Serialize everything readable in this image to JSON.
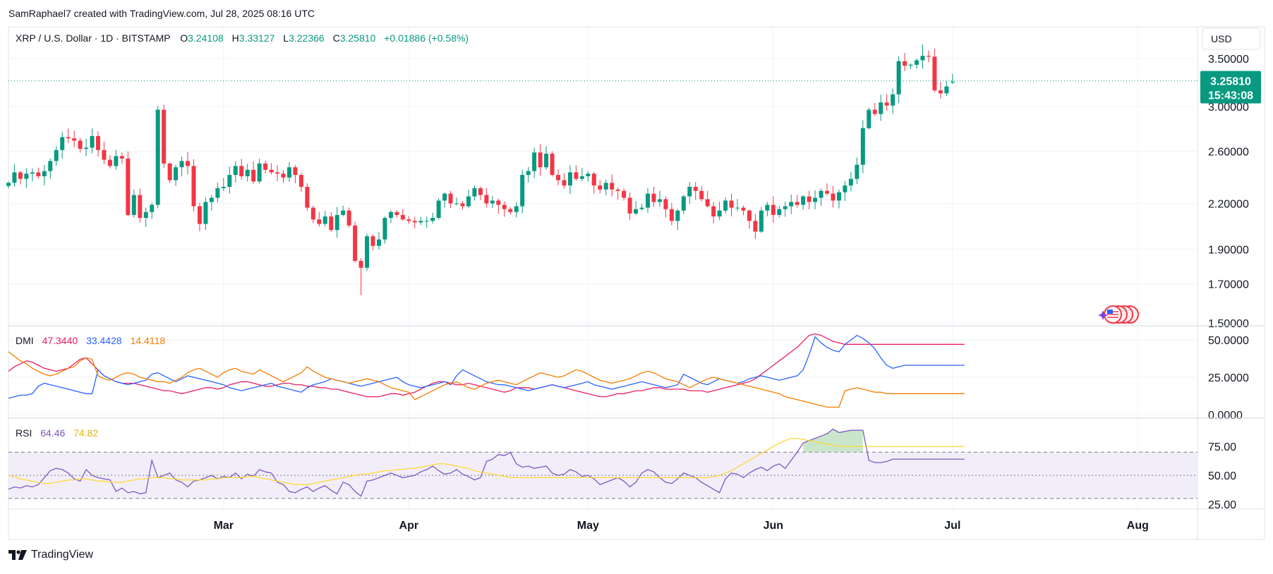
{
  "header": {
    "credit": "SamRaphael7 created with TradingView.com, Jul 28, 2025 08:16 UTC"
  },
  "legend": {
    "symbol": "XRP / U.S. Dollar · 1D · BITSTAMP",
    "o_label": "O",
    "o_value": "3.24108",
    "h_label": "H",
    "h_value": "3.33127",
    "l_label": "L",
    "l_value": "3.22366",
    "c_label": "C",
    "c_value": "3.25810",
    "change": "+0.01886 (+0.58%)"
  },
  "currency": "USD",
  "last_price": {
    "price": "3.25810",
    "countdown": "15:43:08"
  },
  "dmi_legend": {
    "label": "DMI",
    "adx": "47.3440",
    "plus_di": "33.4428",
    "minus_di": "14.4118"
  },
  "rsi_legend": {
    "label": "RSI",
    "rsi": "64.46",
    "ma": "74.82"
  },
  "branding": {
    "logo_text": "TradingView"
  },
  "colors": {
    "up": "#089981",
    "down": "#f23645",
    "adx": "#e91e63",
    "plus_di": "#2962ff",
    "minus_di": "#f57c00",
    "rsi": "#7e57c2",
    "rsi_ma": "#fdd835",
    "grid": "#f0f3fa"
  },
  "chart_data": [
    {
      "type": "candlestick",
      "title": "XRP / U.S. Dollar · 1D · BITSTAMP",
      "y_scale": "log",
      "yticks": [
        "1.50000",
        "1.70000",
        "1.90000",
        "2.20000",
        "2.60000",
        "3.00000",
        "3.50000"
      ],
      "ylim": [
        1.5,
        3.62
      ],
      "xticks": [
        "Mar",
        "Apr",
        "May",
        "Jun",
        "Jul",
        "Aug"
      ],
      "xtick_dates": [
        "2025-03-01",
        "2025-04-01",
        "2025-05-01",
        "2025-06-01",
        "2025-07-01",
        "2025-08-01"
      ],
      "xlim": [
        "2025-01-24",
        "2025-08-11"
      ],
      "first_date": "2025-01-24",
      "close": [
        2.35,
        2.43,
        2.38,
        2.42,
        2.43,
        2.4,
        2.44,
        2.52,
        2.61,
        2.72,
        2.71,
        2.69,
        2.62,
        2.63,
        2.73,
        2.61,
        2.53,
        2.48,
        2.56,
        2.54,
        2.12,
        2.26,
        2.1,
        2.14,
        2.19,
        2.97,
        2.5,
        2.37,
        2.47,
        2.52,
        2.48,
        2.18,
        2.06,
        2.21,
        2.24,
        2.31,
        2.32,
        2.41,
        2.48,
        2.4,
        2.45,
        2.36,
        2.5,
        2.45,
        2.43,
        2.42,
        2.39,
        2.47,
        2.41,
        2.32,
        2.17,
        2.09,
        2.06,
        2.11,
        2.02,
        2.12,
        2.15,
        2.05,
        1.83,
        1.79,
        1.98,
        1.92,
        1.96,
        2.1,
        2.14,
        2.12,
        2.09,
        2.08,
        2.07,
        2.08,
        2.08,
        2.1,
        2.22,
        2.27,
        2.2,
        2.2,
        2.18,
        2.25,
        2.31,
        2.26,
        2.2,
        2.22,
        2.19,
        2.16,
        2.14,
        2.18,
        2.41,
        2.44,
        2.59,
        2.47,
        2.58,
        2.41,
        2.37,
        2.33,
        2.43,
        2.38,
        2.4,
        2.42,
        2.33,
        2.3,
        2.35,
        2.3,
        2.29,
        2.24,
        2.13,
        2.16,
        2.17,
        2.27,
        2.21,
        2.23,
        2.16,
        2.08,
        2.15,
        2.25,
        2.32,
        2.29,
        2.23,
        2.18,
        2.11,
        2.15,
        2.22,
        2.17,
        2.17,
        2.15,
        2.08,
        2.01,
        2.15,
        2.19,
        2.12,
        2.16,
        2.18,
        2.21,
        2.19,
        2.25,
        2.21,
        2.24,
        2.29,
        2.27,
        2.22,
        2.28,
        2.33,
        2.38,
        2.49,
        2.8,
        2.97,
        2.93,
        3.04,
        3.01,
        3.12,
        3.47,
        3.42,
        3.43,
        3.48,
        3.53,
        3.52,
        3.16,
        3.13,
        3.2,
        3.25
      ],
      "ohlc_sample_last": {
        "date": "2025-07-28",
        "open": 3.24108,
        "high": 3.33127,
        "low": 3.22366,
        "close": 3.2581
      },
      "all_time_range_low": 1.64,
      "all_time_range_high": 3.66
    },
    {
      "type": "line",
      "title": "DMI",
      "yticks": [
        "0.0000",
        "25.0000",
        "50.0000"
      ],
      "ylim": [
        0,
        58
      ],
      "series": [
        {
          "name": "ADX",
          "values": [
            29,
            32,
            34,
            36,
            35,
            33,
            31,
            30,
            29,
            30,
            31,
            34,
            37,
            38,
            34,
            30,
            26,
            24,
            22,
            21,
            21,
            21,
            20,
            19,
            18,
            17,
            16,
            16,
            15,
            14,
            15,
            16,
            17,
            18,
            18,
            17,
            18,
            20,
            21,
            22,
            22,
            21,
            20,
            19,
            19,
            20,
            21,
            21,
            20,
            20,
            19,
            19,
            18,
            18,
            17,
            17,
            16,
            15,
            14,
            13,
            12,
            12,
            12,
            13,
            14,
            14,
            13,
            14,
            15,
            17,
            19,
            21,
            22,
            22,
            21,
            20,
            20,
            21,
            20,
            19,
            18,
            17,
            16,
            15,
            16,
            18,
            18,
            18,
            17,
            18,
            19,
            20,
            19,
            18,
            17,
            16,
            15,
            14,
            13,
            12,
            12,
            13,
            14,
            14,
            15,
            16,
            16,
            17,
            18,
            18,
            17,
            17,
            17,
            17,
            16,
            16,
            16,
            15,
            16,
            17,
            18,
            19,
            20,
            21,
            22,
            24,
            27,
            30,
            33,
            36,
            39,
            42,
            45,
            49,
            53,
            54,
            53,
            51,
            49,
            48,
            47,
            47,
            47,
            47,
            47,
            47,
            47,
            47,
            47,
            47,
            47,
            47,
            47,
            47,
            47,
            47,
            47,
            47,
            47,
            47,
            47
          ]
        },
        {
          "name": "+DI",
          "values": [
            11,
            12,
            13,
            13,
            14,
            19,
            21,
            20,
            19,
            18,
            17,
            16,
            15,
            14,
            14,
            30,
            26,
            24,
            22,
            21,
            20,
            21,
            22,
            23,
            27,
            28,
            26,
            24,
            22,
            24,
            26,
            25,
            24,
            23,
            22,
            21,
            20,
            18,
            17,
            16,
            17,
            18,
            19,
            20,
            21,
            19,
            18,
            17,
            16,
            15,
            18,
            20,
            21,
            22,
            24,
            23,
            22,
            21,
            20,
            19,
            20,
            21,
            22,
            23,
            24,
            25,
            22,
            20,
            19,
            18,
            19,
            20,
            21,
            22,
            20,
            26,
            30,
            28,
            26,
            24,
            22,
            21,
            20,
            20,
            19,
            18,
            17,
            16,
            17,
            18,
            19,
            20,
            19,
            18,
            19,
            20,
            21,
            22,
            20,
            19,
            18,
            17,
            18,
            19,
            20,
            21,
            22,
            21,
            20,
            19,
            18,
            19,
            20,
            27,
            25,
            23,
            21,
            20,
            22,
            24,
            23,
            22,
            21,
            22,
            24,
            25,
            26,
            25,
            24,
            23,
            24,
            25,
            26,
            30,
            40,
            52,
            48,
            45,
            43,
            42,
            47,
            50,
            53,
            51,
            48,
            44,
            38,
            33,
            31,
            32,
            33,
            33,
            33,
            33,
            33,
            33,
            33,
            33,
            33,
            33,
            33
          ]
        },
        {
          "name": "-DI",
          "values": [
            42,
            39,
            36,
            34,
            31,
            29,
            27,
            26,
            27,
            29,
            31,
            32,
            36,
            38,
            37,
            26,
            24,
            23,
            25,
            27,
            28,
            27,
            25,
            24,
            23,
            22,
            22,
            21,
            23,
            25,
            28,
            30,
            31,
            29,
            27,
            25,
            28,
            30,
            31,
            29,
            28,
            27,
            30,
            28,
            26,
            24,
            22,
            24,
            26,
            28,
            32,
            29,
            27,
            25,
            24,
            23,
            22,
            21,
            22,
            23,
            24,
            23,
            22,
            20,
            18,
            17,
            16,
            15,
            10,
            12,
            14,
            16,
            18,
            20,
            21,
            22,
            20,
            18,
            17,
            19,
            21,
            22,
            23,
            22,
            21,
            20,
            22,
            24,
            26,
            28,
            27,
            26,
            25,
            26,
            28,
            30,
            29,
            27,
            25,
            23,
            22,
            21,
            22,
            23,
            24,
            26,
            28,
            29,
            28,
            26,
            24,
            23,
            22,
            20,
            18,
            20,
            22,
            24,
            25,
            24,
            23,
            22,
            21,
            20,
            19,
            18,
            17,
            16,
            15,
            14,
            12,
            11,
            10,
            9,
            8,
            7,
            6,
            5,
            5,
            5,
            16,
            17,
            18,
            17,
            16,
            15,
            15,
            14,
            14,
            14,
            14,
            14,
            14,
            14,
            14,
            14,
            14,
            14,
            14,
            14,
            14
          ]
        }
      ]
    },
    {
      "type": "line",
      "title": "RSI",
      "yticks": [
        "25.00",
        "50.00",
        "75.00"
      ],
      "ylim": [
        22,
        97
      ],
      "bands": [
        30,
        50,
        70
      ],
      "series": [
        {
          "name": "RSI",
          "values": [
            38,
            40,
            39,
            41,
            40,
            42,
            48,
            54,
            56,
            55,
            52,
            47,
            45,
            55,
            50,
            48,
            47,
            46,
            36,
            39,
            35,
            36,
            34,
            35,
            63,
            48,
            50,
            52,
            46,
            44,
            40,
            45,
            46,
            48,
            50,
            47,
            49,
            48,
            52,
            47,
            51,
            49,
            55,
            53,
            52,
            44,
            42,
            36,
            35,
            38,
            40,
            36,
            39,
            41,
            37,
            34,
            44,
            42,
            36,
            32,
            45,
            46,
            48,
            50,
            52,
            50,
            48,
            49,
            50,
            53,
            55,
            58,
            54,
            51,
            52,
            55,
            51,
            49,
            46,
            48,
            62,
            64,
            68,
            67,
            70,
            60,
            57,
            58,
            56,
            57,
            58,
            52,
            50,
            51,
            55,
            53,
            49,
            50,
            47,
            42,
            44,
            46,
            48,
            45,
            40,
            44,
            52,
            55,
            53,
            48,
            44,
            43,
            47,
            52,
            50,
            48,
            44,
            41,
            38,
            35,
            47,
            52,
            51,
            48,
            52,
            55,
            57,
            54,
            58,
            60,
            56,
            63,
            70,
            78,
            80,
            82,
            84,
            86,
            90,
            87,
            88,
            89,
            89,
            89,
            63,
            61,
            61,
            62,
            64,
            64,
            64,
            64,
            64,
            64,
            64,
            64,
            64,
            64,
            64,
            64,
            64
          ]
        },
        {
          "name": "RSI-based MA",
          "values": [
            50,
            49,
            47,
            46,
            45,
            44,
            43,
            43,
            44,
            45,
            46,
            46,
            47,
            47,
            46,
            45,
            45,
            44,
            44,
            44,
            45,
            46,
            47,
            47,
            48,
            48,
            48,
            47,
            47,
            46,
            46,
            46,
            46,
            46,
            47,
            47,
            48,
            48,
            48,
            48,
            49,
            49,
            48,
            47,
            46,
            45,
            44,
            43,
            42,
            42,
            42,
            43,
            44,
            45,
            46,
            47,
            48,
            49,
            50,
            51,
            51,
            52,
            53,
            54,
            54,
            55,
            55,
            56,
            56,
            57,
            58,
            59,
            60,
            60,
            59,
            58,
            57,
            56,
            54,
            53,
            52,
            51,
            50,
            49,
            48,
            48,
            48,
            48,
            48,
            48,
            48,
            48,
            48,
            48,
            48,
            48,
            48,
            48,
            48,
            48,
            48,
            48,
            48,
            48,
            48,
            48,
            48,
            48,
            48,
            48,
            48,
            48,
            48,
            48,
            48,
            48,
            48,
            48,
            49,
            50,
            52,
            54,
            57,
            60,
            63,
            66,
            69,
            72,
            75,
            78,
            80,
            82,
            82,
            81,
            80,
            79,
            78,
            77,
            76,
            75,
            75,
            75,
            75,
            75,
            75,
            75,
            75,
            75,
            75,
            75,
            75,
            75,
            75,
            75,
            75,
            75,
            75,
            75,
            75,
            75,
            75
          ]
        }
      ]
    }
  ]
}
